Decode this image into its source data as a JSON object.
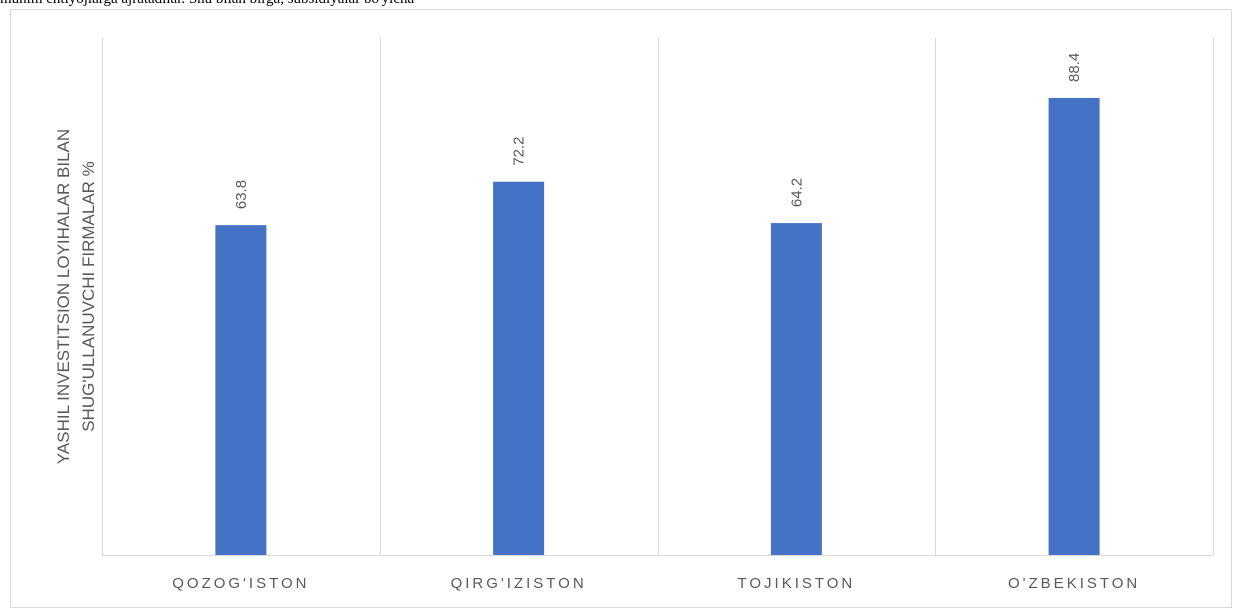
{
  "header": {
    "text": "muhim ehtiyojlarga ajratadilar. Shu bilan birga, subsidiyalar bo'yicha"
  },
  "chart_data": {
    "type": "bar",
    "categories": [
      "QOZOG'ISTON",
      "QIRG'IZISTON",
      "TOJIKISTON",
      "O'ZBEKISTON"
    ],
    "values": [
      63.8,
      72.2,
      64.2,
      88.4
    ],
    "value_labels": [
      "63.8",
      "72.2",
      "64.2",
      "88.4"
    ],
    "title": "",
    "xlabel": "",
    "ylabel_lines": [
      "YASHIL INVESTITSION LOYIHALAR BILAN",
      "SHUG'ULLANUVCHI FIRMALAR %"
    ],
    "ylim": [
      0,
      100
    ],
    "grid": "vertical category separators",
    "legend": "none",
    "bar_color": "#4472c4",
    "grid_color": "#d9d9d9",
    "text_color": "#595959"
  }
}
